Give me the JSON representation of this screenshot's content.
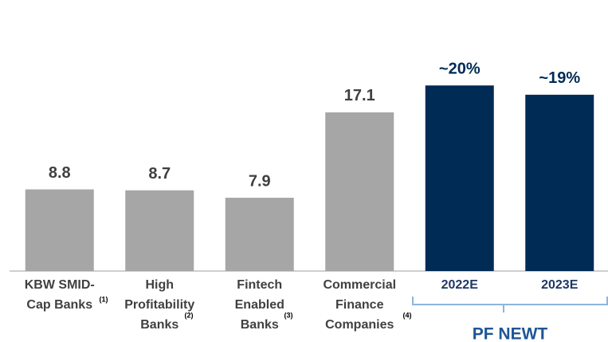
{
  "chart_data": {
    "type": "bar",
    "categories": [
      [
        "KBW SMID-",
        "Cap Banks"
      ],
      [
        "High",
        "Profitability",
        "Banks"
      ],
      [
        "Fintech",
        "Enabled",
        "Banks"
      ],
      [
        "Commercial",
        "Finance",
        "Companies"
      ],
      [
        "2022E"
      ],
      [
        "2023E"
      ]
    ],
    "footnotes": [
      "(1)",
      "(2)",
      "(3)",
      "(4)",
      null,
      null
    ],
    "values": [
      8.8,
      8.7,
      7.9,
      17.1,
      20,
      19
    ],
    "value_labels": [
      "8.8",
      "8.7",
      "7.9",
      "17.1",
      "~20%",
      "~19%"
    ],
    "colors": [
      "#a6a6a6",
      "#a6a6a6",
      "#a6a6a6",
      "#a6a6a6",
      "#002b55",
      "#002b55"
    ],
    "group_label": "PF NEWT",
    "ylim": [
      0,
      25
    ]
  }
}
